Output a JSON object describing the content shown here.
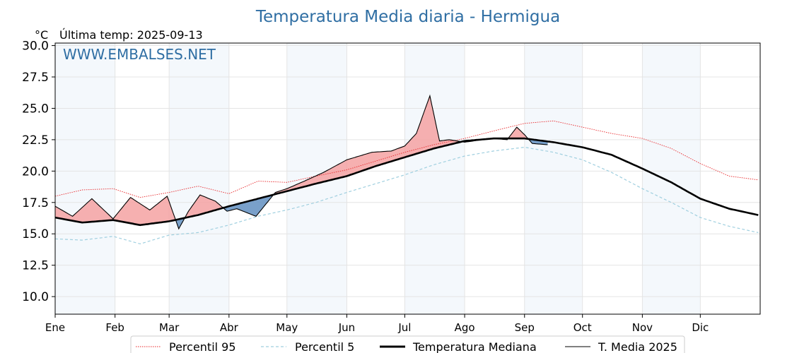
{
  "chart_data": {
    "type": "line",
    "title": "Temperatura Media diaria - Hermigua",
    "unit": "°C",
    "last_temp_label": "Última temp: 2025-09-13",
    "watermark": "WWW.EMBALSES.NET",
    "ylim": [
      8.6,
      30.2
    ],
    "yticks": [
      10.0,
      12.5,
      15.0,
      17.5,
      20.0,
      22.5,
      25.0,
      27.5,
      30.0
    ],
    "ytick_labels": [
      "10.0",
      "12.5",
      "15.0",
      "17.5",
      "20.0",
      "22.5",
      "25.0",
      "27.5",
      "30.0"
    ],
    "grid": true,
    "legend_position": "bottom",
    "months": [
      "Ene",
      "Feb",
      "Mar",
      "Abr",
      "May",
      "Jun",
      "Jul",
      "Ago",
      "Sep",
      "Oct",
      "Nov",
      "Dic"
    ],
    "colors": {
      "p95": "#e8272a",
      "p5": "#9fcfdf",
      "median": "#000000",
      "media2025": "#000000",
      "above_fill": "#f4a2a2",
      "below_fill": "#6a96c4",
      "band": "#e6eff8"
    },
    "series": [
      {
        "name": "Percentil 95",
        "style": "dotted",
        "x": [
          1,
          15,
          31,
          45,
          60,
          75,
          91,
          106,
          121,
          136,
          152,
          167,
          182,
          197,
          213,
          228,
          244,
          259,
          274,
          289,
          305,
          320,
          335,
          350,
          365
        ],
        "values": [
          18.0,
          18.5,
          18.6,
          17.9,
          18.3,
          18.8,
          18.2,
          19.2,
          19.1,
          19.6,
          20.1,
          20.8,
          21.5,
          22.1,
          22.6,
          23.2,
          23.8,
          24.0,
          23.5,
          23.0,
          22.6,
          21.8,
          20.6,
          19.6,
          19.3
        ]
      },
      {
        "name": "Percentil 5",
        "style": "dashed",
        "x": [
          1,
          15,
          31,
          45,
          60,
          75,
          91,
          106,
          121,
          136,
          152,
          167,
          182,
          197,
          213,
          228,
          244,
          259,
          274,
          289,
          305,
          320,
          335,
          350,
          365
        ],
        "values": [
          14.6,
          14.5,
          14.8,
          14.2,
          14.9,
          15.1,
          15.7,
          16.4,
          16.9,
          17.5,
          18.3,
          19.0,
          19.7,
          20.5,
          21.2,
          21.6,
          21.9,
          21.5,
          20.9,
          19.9,
          18.6,
          17.5,
          16.3,
          15.6,
          15.1
        ]
      },
      {
        "name": "Temperatura Mediana",
        "style": "solid-thick",
        "x": [
          1,
          15,
          31,
          45,
          60,
          75,
          91,
          106,
          121,
          136,
          152,
          167,
          182,
          197,
          213,
          228,
          244,
          259,
          274,
          289,
          305,
          320,
          335,
          350,
          365
        ],
        "values": [
          16.3,
          15.9,
          16.1,
          15.7,
          16.0,
          16.5,
          17.2,
          17.8,
          18.4,
          19.0,
          19.6,
          20.4,
          21.1,
          21.8,
          22.4,
          22.6,
          22.6,
          22.3,
          21.9,
          21.3,
          20.2,
          19.1,
          17.8,
          17.0,
          16.5
        ]
      },
      {
        "name": "T. Media 2025",
        "style": "solid-thin",
        "x": [
          1,
          10,
          20,
          31,
          40,
          50,
          59,
          65,
          70,
          76,
          84,
          90,
          95,
          105,
          115,
          121,
          130,
          140,
          152,
          165,
          175,
          182,
          188,
          195,
          200,
          205,
          213,
          222,
          228,
          235,
          240,
          244,
          248,
          256
        ],
        "values": [
          17.2,
          16.4,
          17.8,
          16.2,
          17.9,
          16.9,
          18.0,
          15.4,
          16.8,
          18.1,
          17.6,
          16.8,
          17.0,
          16.4,
          18.3,
          18.6,
          19.2,
          19.9,
          20.9,
          21.5,
          21.6,
          22.0,
          23.0,
          26.0,
          22.4,
          22.5,
          22.3,
          22.5,
          22.6,
          22.5,
          23.5,
          22.9,
          22.2,
          22.1
        ]
      }
    ]
  }
}
